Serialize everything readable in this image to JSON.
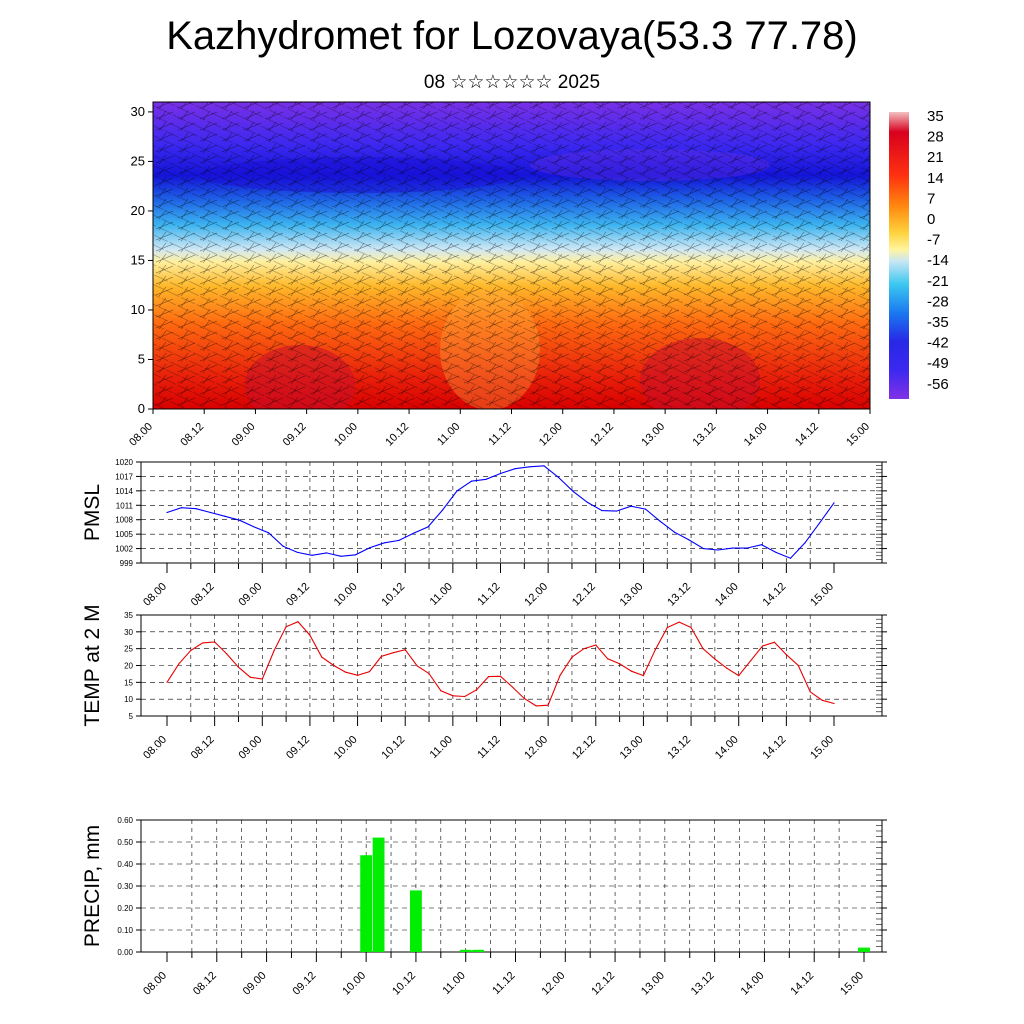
{
  "header": {
    "title": "Kazhydromet for Lozovaya(53.3 77.78)",
    "subtitle": "08 ☆☆☆☆☆☆ 2025"
  },
  "time_labels": [
    "08.00",
    "08.12",
    "09.00",
    "09.12",
    "10.00",
    "10.12",
    "11.00",
    "11.12",
    "12.00",
    "12.12",
    "13.00",
    "13.12",
    "14.00",
    "14.12",
    "15.00"
  ],
  "chart_data": [
    {
      "type": "heatmap",
      "title": "",
      "x_categories": [
        "08.00",
        "08.12",
        "09.00",
        "09.12",
        "10.00",
        "10.12",
        "11.00",
        "11.12",
        "12.00",
        "12.12",
        "13.00",
        "13.12",
        "14.00",
        "14.12",
        "15.00"
      ],
      "y_ticks": [
        0,
        5,
        10,
        15,
        20,
        25,
        30
      ],
      "ylim": [
        0,
        31
      ],
      "colorbar_labels": [
        "35",
        "28",
        "21",
        "14",
        "7",
        "0",
        "-7",
        "-14",
        "-21",
        "-28",
        "-35",
        "-42",
        "-49",
        "-56"
      ],
      "colorbar_colors": [
        "#f0b8b8",
        "#d8001e",
        "#ff3010",
        "#ff6a00",
        "#ffaa20",
        "#ffd23c",
        "#fff5a0",
        "#c8e6f5",
        "#40c8f0",
        "#1a8cf0",
        "#1e5ae6",
        "#2828e6",
        "#3c28f0",
        "#8232e6"
      ]
    },
    {
      "type": "line",
      "ylabel": "PMSL",
      "ylim": [
        999,
        1020
      ],
      "y_ticks": [
        "1020",
        "1017",
        "1014",
        "1011",
        "1008",
        "1005",
        "1002",
        "999"
      ],
      "color": "#0000ff",
      "values": [
        1009.5,
        1010.5,
        1010.3,
        1009.5,
        1008.7,
        1007.9,
        1006.5,
        1005.3,
        1002.5,
        1001.2,
        1000.6,
        1001.1,
        1000.4,
        1000.7,
        1002.2,
        1003.2,
        1003.7,
        1005.2,
        1006.5,
        1010.0,
        1014.0,
        1016.0,
        1016.4,
        1017.6,
        1018.6,
        1019.0,
        1019.2,
        1016.8,
        1013.9,
        1011.6,
        1009.9,
        1009.8,
        1010.8,
        1010.2,
        1007.7,
        1005.4,
        1003.8,
        1002.0,
        1001.7,
        1002.1,
        1002.1,
        1002.8,
        1001.2,
        1000.0,
        1003.2,
        1007.3,
        1011.5
      ]
    },
    {
      "type": "line",
      "ylabel": "TEMP at 2 M",
      "ylim": [
        5,
        35
      ],
      "y_ticks": [
        "35",
        "30",
        "25",
        "20",
        "15",
        "10",
        "5"
      ],
      "color": "#e80000",
      "values": [
        15,
        20.5,
        24.5,
        26.7,
        27,
        23.5,
        19.5,
        16.5,
        16,
        24.5,
        31.5,
        33,
        29,
        22.5,
        20,
        18,
        17.1,
        18.2,
        22.7,
        23.8,
        24.7,
        19.9,
        17.6,
        12.5,
        11,
        10.8,
        12.8,
        16.7,
        16.8,
        13.6,
        10.2,
        8,
        8.2,
        17.1,
        22.5,
        25,
        26.1,
        22,
        20.5,
        18.3,
        17,
        24.7,
        31.3,
        32.9,
        31.3,
        25,
        21.9,
        19.2,
        17,
        21.4,
        25.8,
        26.9,
        23.2,
        20,
        12.2,
        9.7,
        8.7
      ]
    },
    {
      "type": "bar",
      "ylabel": "PRECIP, mm",
      "ylim": [
        0,
        0.6
      ],
      "y_ticks": [
        "0.60",
        "0.50",
        "0.40",
        "0.30",
        "0.20",
        "0.10",
        "0.00"
      ],
      "color": "#00ee00",
      "bars": [
        {
          "x": "10.00",
          "value": 0.44
        },
        {
          "x": "10.03",
          "value": 0.52
        },
        {
          "x": "10.12",
          "value": 0.28
        },
        {
          "x": "11.00",
          "value": 0.01
        },
        {
          "x": "11.03",
          "value": 0.01
        },
        {
          "x": "15.00",
          "value": 0.02
        }
      ]
    }
  ]
}
